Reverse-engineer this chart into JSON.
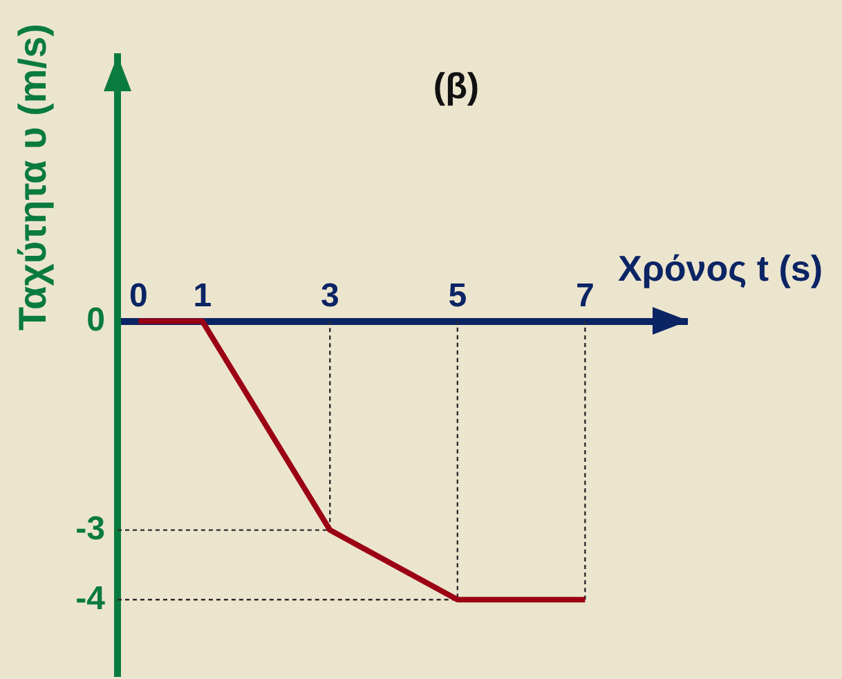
{
  "chart_data": {
    "type": "line",
    "title": "(β)",
    "xlabel": "Χρόνος t (s)",
    "ylabel": "Ταχύτητα υ (m/s)",
    "xlim": [
      -0.33,
      8.6
    ],
    "xticks": [
      0,
      1,
      3,
      5,
      7
    ],
    "ylim": [
      -5.1,
      3.8
    ],
    "yticks": [
      0,
      -3,
      -4
    ],
    "series": [
      {
        "color": "#9b0014",
        "x": [
          0,
          1,
          3,
          5,
          7
        ],
        "values": [
          0,
          0,
          -3,
          -4,
          -4
        ]
      },
      {
        "color": "#2b2b2b",
        "line_style": "dashed",
        "x": [
          -0.33,
          3,
          3
        ],
        "values": [
          -3,
          -3,
          0
        ]
      },
      {
        "color": "#2b2b2b",
        "line_style": "dashed",
        "x": [
          -0.33,
          5,
          5
        ],
        "values": [
          -4,
          -4,
          0
        ]
      },
      {
        "color": "#2b2b2b",
        "line_style": "dashed",
        "x": [
          7,
          7
        ],
        "values": [
          -4,
          0
        ]
      }
    ]
  }
}
